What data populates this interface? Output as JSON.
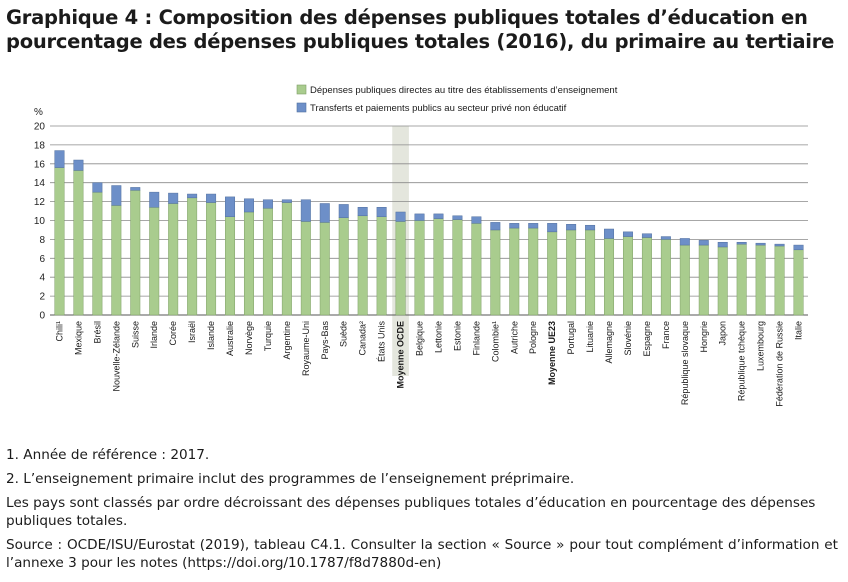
{
  "title": "Graphique 4 : Composition des dépenses publiques totales d’éducation en pourcentage des dépenses publiques totales (2016), du primaire au tertiaire",
  "notes": {
    "note1": "1. Année de référence : 2017.",
    "note2": "2. L’enseignement primaire inclut des programmes de l’enseignement préprimaire.",
    "ordering": "Les pays sont classés par ordre décroissant des dépenses publiques totales d’éducation en pourcentage des dépenses publiques totales.",
    "source": "Source : OCDE/ISU/Eurostat (2019), tableau C4.1. Consulter la section « Source » pour tout complément d’information et l’annexe 3 pour les notes (https://doi.org/10.1787/f8d7880d-en)"
  },
  "colors": {
    "direct": "#a9cc8e",
    "transfers": "#6d8fc8",
    "highlight": "#e4e6dd",
    "grid": "#8a8a8a"
  },
  "chart_data": {
    "type": "bar",
    "stacked": true,
    "ylabel": "%",
    "ylim": [
      0,
      20
    ],
    "yticks": [
      0,
      2,
      4,
      6,
      8,
      10,
      12,
      14,
      16,
      18,
      20
    ],
    "grid": true,
    "legend_position": "top",
    "highlighted": [
      "Moyenne OCDE"
    ],
    "bold_categories": [
      "Moyenne OCDE",
      "Moyenne UE23"
    ],
    "categories": [
      "Chili¹",
      "Mexique",
      "Brésil",
      "Nouvelle-Zélande",
      "Suisse",
      "Irlande",
      "Corée",
      "Israël",
      "Islande",
      "Australie",
      "Norvège",
      "Turquie",
      "Argentine",
      "Royaume-Uni",
      "Pays-Bas",
      "Suède",
      "Canada²",
      "États Unis",
      "Moyenne OCDE",
      "Belgique",
      "Lettonie",
      "Estonie",
      "Finlande",
      "Colombie¹",
      "Autriche",
      "Pologne",
      "Moyenne UE23",
      "Portugal",
      "Lituanie",
      "Allemagne",
      "Slovénie",
      "Espagne",
      "France",
      "République slovaque",
      "Hongrie",
      "Japon",
      "République tchèque",
      "Luxembourg",
      "Fédération de Russie",
      "Italie"
    ],
    "series": [
      {
        "name": "Dépenses publiques directes au titre des établissements d’enseignement",
        "values": [
          15.6,
          15.3,
          13.0,
          11.6,
          13.2,
          11.4,
          11.8,
          12.4,
          11.9,
          10.4,
          10.9,
          11.3,
          11.9,
          9.9,
          9.8,
          10.3,
          10.5,
          10.4,
          9.9,
          10.0,
          10.2,
          10.1,
          9.7,
          9.0,
          9.2,
          9.2,
          8.8,
          9.0,
          9.0,
          8.1,
          8.3,
          8.2,
          8.0,
          7.4,
          7.4,
          7.2,
          7.5,
          7.4,
          7.3,
          6.9
        ]
      },
      {
        "name": "Transferts et paiements publics au secteur privé non éducatif",
        "values": [
          1.8,
          1.1,
          1.0,
          2.1,
          0.3,
          1.6,
          1.1,
          0.4,
          0.9,
          2.1,
          1.4,
          0.9,
          0.3,
          2.3,
          2.0,
          1.4,
          0.9,
          1.0,
          1.0,
          0.7,
          0.5,
          0.4,
          0.7,
          0.8,
          0.5,
          0.5,
          0.9,
          0.6,
          0.5,
          1.0,
          0.5,
          0.4,
          0.3,
          0.7,
          0.5,
          0.5,
          0.2,
          0.2,
          0.2,
          0.5
        ]
      }
    ]
  }
}
